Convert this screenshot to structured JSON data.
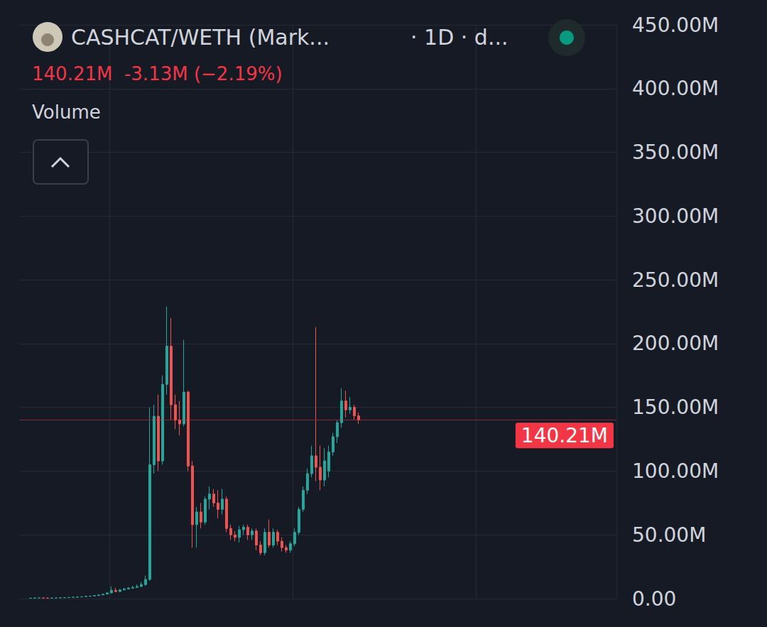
{
  "chart_data": {
    "type": "candlestick",
    "title": "CASHCAT/WETH (Mark...",
    "subtitle": "· 1D · d...",
    "last": {
      "value": 140.21,
      "label": "140.21M"
    },
    "change": {
      "value": -3.13,
      "percent": -2.19,
      "label": "-3.13M (−2.19%)"
    },
    "annotations": [
      "Volume"
    ],
    "categories": [
      null,
      null,
      null,
      null,
      null,
      null,
      null,
      null,
      null,
      null,
      null,
      null,
      null,
      null,
      null,
      null,
      null,
      null,
      null,
      null,
      null,
      null,
      null,
      null,
      null,
      null,
      null,
      null,
      null,
      null,
      null,
      null,
      null,
      null,
      null,
      null,
      null,
      null,
      null,
      null,
      null,
      null,
      null,
      null,
      null,
      null,
      null,
      null,
      null,
      null,
      null,
      null,
      null,
      null,
      null,
      null,
      null,
      null,
      null,
      null,
      null,
      null,
      null,
      null,
      null,
      null,
      null,
      null,
      null,
      null,
      null,
      null,
      null,
      null,
      null,
      null,
      null,
      null,
      null,
      null,
      null,
      null,
      null,
      null,
      null,
      null,
      null,
      null,
      null,
      null,
      null,
      null,
      null,
      null,
      null,
      null,
      null,
      null,
      null,
      null,
      null,
      null,
      null,
      null,
      null,
      null,
      null,
      null,
      null,
      null,
      null,
      null,
      null,
      null,
      null,
      null,
      null,
      null,
      null,
      null,
      null,
      null,
      null,
      null,
      null,
      null,
      null,
      null,
      null,
      null,
      null,
      null,
      null,
      null,
      null,
      null,
      null,
      null,
      null,
      null
    ],
    "open": [
      null,
      null,
      0.3,
      0.4,
      0.5,
      0.6,
      0.5,
      0.4,
      0.5,
      0.6,
      0.7,
      0.8,
      1.0,
      1.1,
      1.3,
      1.5,
      1.8,
      2.0,
      2.4,
      2.9,
      3.5,
      4.5,
      6.5,
      5.5,
      6.8,
      7.5,
      8.2,
      8.8,
      9.5,
      11,
      15,
      105,
      143,
      108,
      168,
      198,
      152,
      140,
      137,
      162,
      104,
      58,
      68,
      60,
      78,
      82,
      75,
      70,
      78,
      55,
      50,
      48,
      54,
      56,
      50,
      53,
      42,
      36,
      52,
      42,
      52,
      45,
      40,
      38,
      43,
      52,
      70,
      85,
      98,
      112,
      103,
      93,
      100,
      115,
      127,
      138,
      155,
      148,
      150,
      143.34,
      null,
      null,
      null,
      null,
      null,
      null,
      null,
      null,
      null,
      null,
      null,
      null,
      null,
      null,
      null,
      null,
      null,
      null,
      null,
      null,
      null,
      null,
      null,
      null,
      null,
      null,
      null,
      null,
      null,
      null,
      null,
      null,
      null,
      null,
      null,
      null,
      null,
      null,
      null,
      null,
      null,
      null,
      null,
      null,
      null,
      null,
      null,
      null,
      null,
      null,
      null,
      null,
      null,
      null,
      null,
      null,
      null,
      null,
      null,
      null
    ],
    "close": [
      null,
      null,
      0.4,
      0.5,
      0.6,
      0.5,
      0.4,
      0.5,
      0.6,
      0.7,
      0.8,
      1.0,
      1.1,
      1.3,
      1.5,
      1.8,
      2.0,
      2.4,
      2.9,
      3.5,
      4.5,
      6.5,
      5.5,
      6.8,
      7.5,
      8.2,
      8.8,
      9.5,
      11,
      15,
      105,
      143,
      108,
      168,
      198,
      152,
      140,
      137,
      162,
      104,
      58,
      68,
      60,
      78,
      82,
      75,
      70,
      78,
      55,
      50,
      48,
      54,
      56,
      50,
      53,
      42,
      36,
      52,
      42,
      52,
      45,
      40,
      38,
      43,
      52,
      70,
      85,
      98,
      112,
      103,
      93,
      108,
      115,
      127,
      138,
      155,
      148,
      150,
      143.34,
      140.21,
      null,
      null,
      null,
      null,
      null,
      null,
      null,
      null,
      null,
      null,
      null,
      null,
      null,
      null,
      null,
      null,
      null,
      null,
      null,
      null,
      null,
      null,
      null,
      null,
      null,
      null,
      null,
      null,
      null,
      null,
      null,
      null,
      null,
      null,
      null,
      null,
      null,
      null,
      null,
      null,
      null,
      null,
      null,
      null,
      null,
      null,
      null,
      null,
      null,
      null,
      null,
      null,
      null,
      null,
      null,
      null,
      null,
      null,
      null,
      null
    ],
    "low": [
      null,
      null,
      0.2,
      0.3,
      0.4,
      0.4,
      0.3,
      0.3,
      0.4,
      0.5,
      0.6,
      0.7,
      0.9,
      1.0,
      1.2,
      1.4,
      1.7,
      1.9,
      2.3,
      2.8,
      3.4,
      4.0,
      5.0,
      5.2,
      6.5,
      7.2,
      8.0,
      8.5,
      9.2,
      10,
      14,
      98,
      100,
      105,
      160,
      140,
      133,
      128,
      135,
      100,
      40,
      40,
      55,
      58,
      70,
      72,
      63,
      66,
      52,
      46,
      45,
      44,
      50,
      46,
      46,
      38,
      34,
      34,
      40,
      40,
      42,
      37,
      36,
      36,
      41,
      50,
      68,
      82,
      95,
      92,
      85,
      88,
      95,
      112,
      122,
      134,
      142,
      145,
      140,
      137,
      null,
      null,
      null,
      null,
      null,
      null,
      null,
      null,
      null,
      null,
      null,
      null,
      null,
      null,
      null,
      null,
      null,
      null,
      null,
      null,
      null,
      null,
      null,
      null,
      null,
      null,
      null,
      null,
      null,
      null,
      null,
      null,
      null,
      null,
      null,
      null,
      null,
      null,
      null,
      null,
      null,
      null,
      null,
      null,
      null,
      null,
      null,
      null,
      null,
      null,
      null,
      null,
      null,
      null,
      null,
      null,
      null,
      null,
      null,
      null
    ],
    "high": [
      null,
      null,
      0.5,
      0.6,
      0.7,
      0.7,
      0.6,
      0.6,
      0.7,
      0.8,
      0.9,
      1.1,
      1.2,
      1.4,
      1.7,
      2.0,
      2.2,
      2.6,
      3.1,
      3.8,
      5.0,
      9.5,
      8.5,
      7.5,
      8.5,
      9.0,
      10,
      11,
      13,
      18,
      150,
      152,
      160,
      175,
      229,
      220,
      160,
      155,
      203,
      163,
      108,
      72,
      75,
      80,
      88,
      86,
      85,
      86,
      80,
      58,
      53,
      57,
      58,
      58,
      55,
      55,
      45,
      55,
      62,
      55,
      54,
      48,
      42,
      45,
      55,
      72,
      88,
      102,
      120,
      213,
      120,
      118,
      120,
      130,
      140,
      165,
      163,
      158,
      152,
      146,
      null,
      null,
      null,
      null,
      null,
      null,
      null,
      null,
      null,
      null,
      null,
      null,
      null,
      null,
      null,
      null,
      null,
      null,
      null,
      null,
      null,
      null,
      null,
      null,
      null,
      null,
      null,
      null,
      null,
      null,
      null,
      null,
      null,
      null,
      null,
      null,
      null,
      null,
      null,
      null,
      null,
      null,
      null,
      null,
      null,
      null,
      null,
      null,
      null,
      null,
      null,
      null,
      null,
      null,
      null,
      null,
      null,
      null,
      null,
      null
    ],
    "ylim": [
      0,
      450
    ],
    "yticks": [
      {
        "value": 0,
        "label": "0.00"
      },
      {
        "value": 50,
        "label": "50.00M"
      },
      {
        "value": 100,
        "label": "100.00M"
      },
      {
        "value": 150,
        "label": "150.00M"
      },
      {
        "value": 200,
        "label": "200.00M"
      },
      {
        "value": 250,
        "label": "250.00M"
      },
      {
        "value": 300,
        "label": "300.00M"
      },
      {
        "value": 350,
        "label": "350.00M"
      },
      {
        "value": 400,
        "label": "400.00M"
      },
      {
        "value": 450,
        "label": "450.00M"
      }
    ],
    "grid": true,
    "tick_labels": "y"
  }
}
